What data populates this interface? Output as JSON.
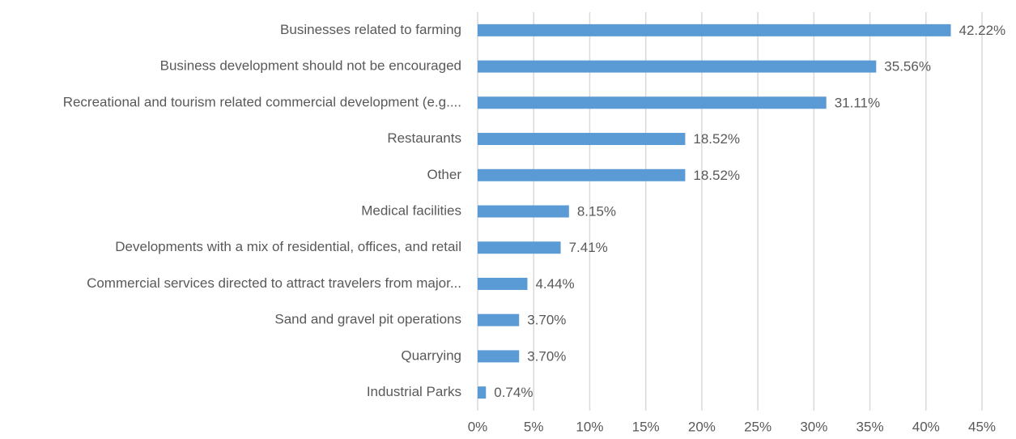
{
  "chart_data": {
    "type": "barh",
    "categories": [
      "Businesses related to farming",
      "Business development should not be encouraged",
      "Recreational and tourism related commercial development (e.g....",
      "Restaurants",
      "Other",
      "Medical facilities",
      "Developments with a mix of residential, offices, and retail",
      "Commercial services directed to attract travelers from major...",
      "Sand and gravel pit operations",
      "Quarrying",
      "Industrial Parks"
    ],
    "values": [
      42.22,
      35.56,
      31.11,
      18.52,
      18.52,
      8.15,
      7.41,
      4.44,
      3.7,
      3.7,
      0.74
    ],
    "value_labels": [
      "42.22%",
      "35.56%",
      "31.11%",
      "18.52%",
      "18.52%",
      "8.15%",
      "7.41%",
      "4.44%",
      "3.70%",
      "3.70%",
      "0.74%"
    ],
    "color": "#5b9bd5",
    "xlim": [
      0,
      45
    ],
    "xticks": [
      {
        "value": 0,
        "label": "0%"
      },
      {
        "value": 5,
        "label": "5%"
      },
      {
        "value": 10,
        "label": "10%"
      },
      {
        "value": 15,
        "label": "15%"
      },
      {
        "value": 20,
        "label": "20%"
      },
      {
        "value": 25,
        "label": "25%"
      },
      {
        "value": 30,
        "label": "30%"
      },
      {
        "value": 35,
        "label": "35%"
      },
      {
        "value": 40,
        "label": "40%"
      },
      {
        "value": 45,
        "label": "45%"
      }
    ],
    "grid": true
  }
}
